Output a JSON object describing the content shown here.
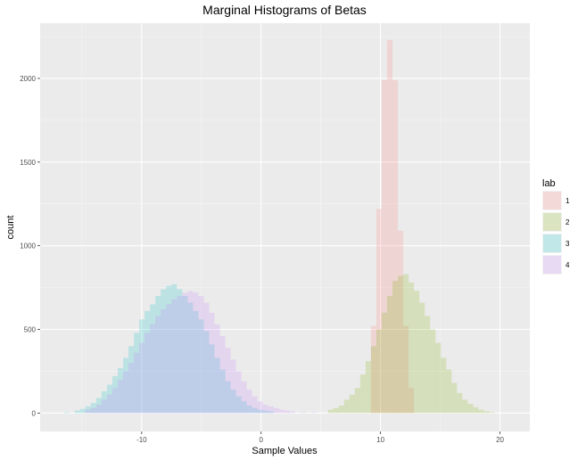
{
  "chart_data": {
    "type": "bar",
    "subtype": "overlaid-histogram",
    "title": "Marginal Histograms of Betas",
    "xlabel": "Sample Values",
    "ylabel": "count",
    "xlim": [
      -18.5,
      22.5
    ],
    "ylim": [
      -110,
      2330
    ],
    "x_ticks": [
      -10,
      0,
      10,
      20
    ],
    "x_tick_labels": [
      "-10",
      "0",
      "10",
      "20"
    ],
    "y_ticks": [
      0,
      500,
      1000,
      1500,
      2000
    ],
    "y_tick_labels": [
      "0",
      "500",
      "1000",
      "1500",
      "2000"
    ],
    "grid": true,
    "bin_width": 0.45,
    "legend": {
      "title": "lab",
      "placement": "right"
    },
    "series": [
      {
        "name": "1",
        "color": "#F8766D",
        "bins": [
          [
            9.2,
            520
          ],
          [
            9.65,
            1220
          ],
          [
            10.1,
            1990
          ],
          [
            10.55,
            2230
          ],
          [
            11.0,
            1990
          ],
          [
            11.45,
            1090
          ],
          [
            11.9,
            520
          ],
          [
            12.35,
            150
          ]
        ]
      },
      {
        "name": "2",
        "color": "#7CAE00",
        "bins": [
          [
            5.6,
            20
          ],
          [
            6.05,
            30
          ],
          [
            6.5,
            45
          ],
          [
            6.95,
            80
          ],
          [
            7.4,
            110
          ],
          [
            7.85,
            150
          ],
          [
            8.3,
            230
          ],
          [
            8.75,
            310
          ],
          [
            9.2,
            400
          ],
          [
            9.65,
            500
          ],
          [
            10.1,
            600
          ],
          [
            10.55,
            700
          ],
          [
            11.0,
            790
          ],
          [
            11.45,
            820
          ],
          [
            11.9,
            830
          ],
          [
            12.35,
            780
          ],
          [
            12.8,
            730
          ],
          [
            13.25,
            660
          ],
          [
            13.7,
            580
          ],
          [
            14.15,
            500
          ],
          [
            14.6,
            420
          ],
          [
            15.05,
            330
          ],
          [
            15.5,
            260
          ],
          [
            15.95,
            180
          ],
          [
            16.4,
            120
          ],
          [
            16.85,
            80
          ],
          [
            17.3,
            55
          ],
          [
            17.75,
            35
          ],
          [
            18.2,
            20
          ],
          [
            18.65,
            10
          ],
          [
            19.1,
            5
          ]
        ]
      },
      {
        "name": "3",
        "color": "#00BFC4",
        "bins": [
          [
            -16.5,
            5
          ],
          [
            -15.6,
            15
          ],
          [
            -15.15,
            25
          ],
          [
            -14.7,
            40
          ],
          [
            -14.25,
            60
          ],
          [
            -13.8,
            90
          ],
          [
            -13.35,
            130
          ],
          [
            -12.9,
            170
          ],
          [
            -12.45,
            220
          ],
          [
            -12.0,
            270
          ],
          [
            -11.55,
            330
          ],
          [
            -11.1,
            400
          ],
          [
            -10.65,
            480
          ],
          [
            -10.2,
            560
          ],
          [
            -9.75,
            610
          ],
          [
            -9.3,
            650
          ],
          [
            -8.85,
            700
          ],
          [
            -8.4,
            740
          ],
          [
            -7.95,
            760
          ],
          [
            -7.5,
            770
          ],
          [
            -7.05,
            740
          ],
          [
            -6.6,
            700
          ],
          [
            -6.15,
            660
          ],
          [
            -5.7,
            610
          ],
          [
            -5.25,
            560
          ],
          [
            -4.8,
            490
          ],
          [
            -4.35,
            410
          ],
          [
            -3.9,
            330
          ],
          [
            -3.45,
            260
          ],
          [
            -3.0,
            190
          ],
          [
            -2.55,
            140
          ],
          [
            -2.1,
            100
          ],
          [
            -1.65,
            70
          ],
          [
            -1.2,
            45
          ],
          [
            -0.75,
            30
          ],
          [
            -0.3,
            20
          ],
          [
            0.15,
            15
          ],
          [
            0.6,
            10
          ]
        ]
      },
      {
        "name": "4",
        "color": "#C77CFF",
        "bins": [
          [
            -14.7,
            20
          ],
          [
            -14.25,
            30
          ],
          [
            -13.8,
            50
          ],
          [
            -13.35,
            80
          ],
          [
            -12.9,
            110
          ],
          [
            -12.45,
            150
          ],
          [
            -12.0,
            200
          ],
          [
            -11.55,
            250
          ],
          [
            -11.1,
            300
          ],
          [
            -10.65,
            360
          ],
          [
            -10.2,
            420
          ],
          [
            -9.75,
            480
          ],
          [
            -9.3,
            530
          ],
          [
            -8.85,
            580
          ],
          [
            -8.4,
            620
          ],
          [
            -7.95,
            650
          ],
          [
            -7.5,
            680
          ],
          [
            -7.05,
            700
          ],
          [
            -6.6,
            720
          ],
          [
            -6.15,
            730
          ],
          [
            -5.7,
            720
          ],
          [
            -5.25,
            700
          ],
          [
            -4.8,
            660
          ],
          [
            -4.35,
            600
          ],
          [
            -3.9,
            530
          ],
          [
            -3.45,
            460
          ],
          [
            -3.0,
            390
          ],
          [
            -2.55,
            320
          ],
          [
            -2.1,
            250
          ],
          [
            -1.65,
            190
          ],
          [
            -1.2,
            140
          ],
          [
            -0.75,
            100
          ],
          [
            -0.3,
            70
          ],
          [
            0.15,
            50
          ],
          [
            0.6,
            40
          ],
          [
            1.05,
            30
          ],
          [
            1.5,
            20
          ],
          [
            1.95,
            15
          ],
          [
            2.4,
            10
          ],
          [
            3.3,
            5
          ],
          [
            4.2,
            5
          ]
        ]
      }
    ]
  }
}
